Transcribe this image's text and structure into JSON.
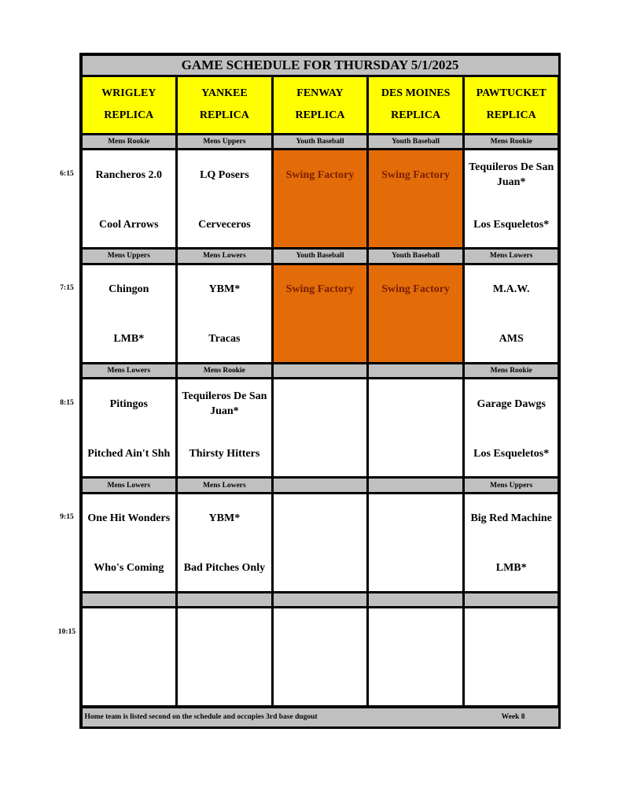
{
  "title": "GAME SCHEDULE FOR THURSDAY 5/1/2025",
  "fields": [
    {
      "line1": "WRIGLEY",
      "line2": "REPLICA"
    },
    {
      "line1": "YANKEE",
      "line2": "REPLICA"
    },
    {
      "line1": "FENWAY",
      "line2": "REPLICA"
    },
    {
      "line1": "DES MOINES",
      "line2": "REPLICA"
    },
    {
      "line1": "PAWTUCKET",
      "line2": "REPLICA"
    }
  ],
  "colors": {
    "header": "#ffff00",
    "divider": "#c0c0c0",
    "highlight": "#e36c09",
    "highlight_text": "#7a1f00"
  },
  "slots": [
    {
      "time": "6:15",
      "divisions": [
        "Mens Rookie",
        "Mens Uppers",
        "Youth Baseball",
        "Youth Baseball",
        "Mens Rookie"
      ],
      "games": [
        {
          "away": "Rancheros 2.0",
          "home": "Cool Arrows"
        },
        {
          "away": "LQ Posers",
          "home": "Cerveceros"
        },
        {
          "away": "Swing Factory",
          "home": "",
          "highlight": true
        },
        {
          "away": "Swing Factory",
          "home": "",
          "highlight": true
        },
        {
          "away": "Tequileros De San Juan*",
          "home": "Los Esqueletos*"
        }
      ]
    },
    {
      "time": "7:15",
      "divisions": [
        "Mens Uppers",
        "Mens Lowers",
        "Youth Baseball",
        "Youth Baseball",
        "Mens Lowers"
      ],
      "games": [
        {
          "away": "Chingon",
          "home": "LMB*"
        },
        {
          "away": "YBM*",
          "home": "Tracas"
        },
        {
          "away": "Swing Factory",
          "home": "",
          "highlight": true
        },
        {
          "away": "Swing Factory",
          "home": "",
          "highlight": true
        },
        {
          "away": "M.A.W.",
          "home": "AMS"
        }
      ]
    },
    {
      "time": "8:15",
      "divisions": [
        "Mens Lowers",
        "Mens Rookie",
        "",
        "",
        "Mens Rookie"
      ],
      "games": [
        {
          "away": "Pitingos",
          "home": "Pitched Ain't Shh"
        },
        {
          "away": "Tequileros De San Juan*",
          "home": "Thirsty Hitters"
        },
        {
          "away": "",
          "home": ""
        },
        {
          "away": "",
          "home": ""
        },
        {
          "away": "Garage Dawgs",
          "home": "Los Esqueletos*"
        }
      ]
    },
    {
      "time": "9:15",
      "divisions": [
        "Mens Lowers",
        "Mens Lowers",
        "",
        "",
        "Mens Uppers"
      ],
      "games": [
        {
          "away": "One Hit Wonders",
          "home": "Who's Coming"
        },
        {
          "away": "YBM*",
          "home": "Bad Pitches Only"
        },
        {
          "away": "",
          "home": ""
        },
        {
          "away": "",
          "home": ""
        },
        {
          "away": "Big Red Machine",
          "home": "LMB*"
        }
      ]
    },
    {
      "time": "10:15",
      "divisions": [
        "",
        "",
        "",
        "",
        ""
      ],
      "games": [
        {
          "away": "",
          "home": ""
        },
        {
          "away": "",
          "home": ""
        },
        {
          "away": "",
          "home": ""
        },
        {
          "away": "",
          "home": ""
        },
        {
          "away": "",
          "home": ""
        }
      ]
    }
  ],
  "footer": {
    "note": "Home team is listed second on the schedule and occupies 3rd base dugout",
    "week": "Week 8"
  }
}
